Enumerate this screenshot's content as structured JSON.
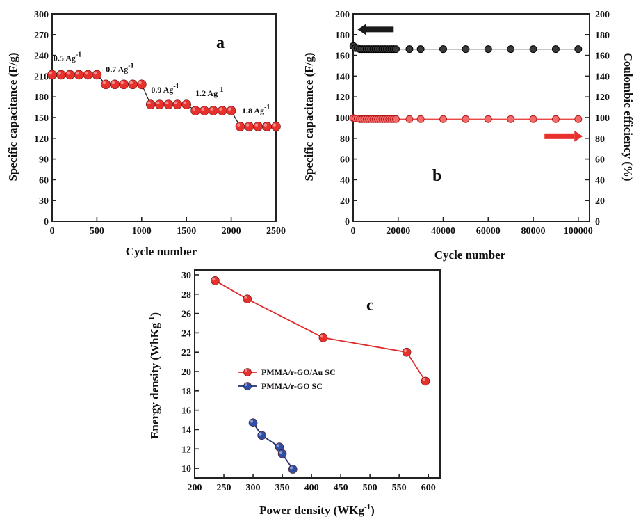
{
  "colors": {
    "red": "#e8302d",
    "red_line": "#e02b2b",
    "black": "#1a1a1a",
    "blue": "#2f4fa6",
    "blue_line": "#1d2f6f"
  },
  "chart_data": [
    {
      "panel": "a",
      "type": "scatter",
      "xlabel": "Cycle number",
      "ylabel": "Specific capacitance (F/g)",
      "xlim": [
        0,
        2500
      ],
      "ylim": [
        0,
        300
      ],
      "xticks": [
        0,
        500,
        1000,
        1500,
        2000,
        2500
      ],
      "yticks": [
        0,
        30,
        60,
        90,
        120,
        150,
        180,
        210,
        240,
        270,
        300
      ],
      "series": [
        {
          "x": [
            0,
            100,
            200,
            300,
            400,
            500,
            600,
            700,
            800,
            900,
            1000,
            1100,
            1200,
            1300,
            1400,
            1500,
            1600,
            1700,
            1800,
            1900,
            2000,
            2100,
            2200,
            2300,
            2400,
            2500
          ],
          "y": [
            212,
            212,
            212,
            212,
            212,
            212,
            198,
            198,
            198,
            198,
            198,
            169,
            169,
            169,
            169,
            169,
            160,
            160,
            160,
            160,
            160,
            137,
            137,
            137,
            137,
            137
          ]
        }
      ],
      "annotations": [
        {
          "text": "0.5 Ag",
          "sup": "-1",
          "x": 15,
          "y": 232
        },
        {
          "text": "0.7 Ag",
          "sup": "-1",
          "x": 600,
          "y": 216
        },
        {
          "text": "0.9 Ag",
          "sup": "-1",
          "x": 1105,
          "y": 186
        },
        {
          "text": "1.2 Ag",
          "sup": "-1",
          "x": 1600,
          "y": 181
        },
        {
          "text": "1.8 Ag",
          "sup": "-1",
          "x": 2120,
          "y": 156
        }
      ],
      "connectors": [
        [
          500,
          212,
          600,
          198
        ],
        [
          1000,
          198,
          1100,
          169
        ],
        [
          1500,
          169,
          1600,
          160
        ],
        [
          2000,
          160,
          2100,
          137
        ]
      ]
    },
    {
      "panel": "b",
      "type": "scatter",
      "xlabel": "Cycle number",
      "ylabel": "Specific capacitance (F/g)",
      "y2label": "Coulombic efficiency (%)",
      "xlim": [
        0,
        105000
      ],
      "ylim": [
        0,
        200
      ],
      "y2lim": [
        0,
        200
      ],
      "xticks": [
        0,
        20000,
        40000,
        60000,
        80000,
        100000
      ],
      "yticks": [
        0,
        20,
        40,
        60,
        80,
        100,
        120,
        140,
        160,
        180,
        200
      ],
      "series": [
        {
          "axis": "left",
          "color": "black",
          "x": [
            100,
            1000,
            2000,
            3000,
            4000,
            5000,
            6000,
            7000,
            8000,
            9000,
            10000,
            11000,
            12000,
            13000,
            14000,
            15000,
            16000,
            17000,
            18000,
            19000,
            25000,
            30000,
            40000,
            50000,
            60000,
            70000,
            80000,
            90000,
            100000
          ],
          "y": [
            169,
            167,
            167,
            166,
            166,
            166,
            166,
            166,
            166,
            166,
            166,
            166,
            166,
            166,
            166,
            166,
            166,
            166,
            166,
            166,
            166,
            166,
            166,
            166,
            166,
            166,
            166,
            166,
            166
          ]
        },
        {
          "axis": "right",
          "color": "red",
          "x": [
            100,
            1000,
            2000,
            3000,
            4000,
            5000,
            6000,
            7000,
            8000,
            9000,
            10000,
            11000,
            12000,
            13000,
            14000,
            15000,
            16000,
            17000,
            18000,
            19000,
            25000,
            30000,
            40000,
            50000,
            60000,
            70000,
            80000,
            90000,
            100000
          ],
          "y": [
            99.5,
            99,
            99,
            98.5,
            98.5,
            98.5,
            98.5,
            98.5,
            98.5,
            98.5,
            98.5,
            98.5,
            98.5,
            98.5,
            98.5,
            98.5,
            98.5,
            98.5,
            98.5,
            98.5,
            98.5,
            98.5,
            98.5,
            98.5,
            98.5,
            98.5,
            98.5,
            98.5,
            98.5
          ]
        }
      ],
      "arrows": [
        {
          "color": "black",
          "direction": "left",
          "x_from": 18000,
          "x_to": 2000,
          "y": 185
        },
        {
          "color": "red",
          "direction": "right",
          "x_from": 85000,
          "x_to": 102000,
          "y": 82
        }
      ]
    },
    {
      "panel": "c",
      "type": "line",
      "xlabel": "Power density (WKg",
      "xlabel_sup": "-1",
      "xlabel_tail": ")",
      "ylabel": "Energy density (WhKg",
      "ylabel_sup": "-1",
      "ylabel_tail": ")",
      "xlim": [
        200,
        620
      ],
      "ylim": [
        9,
        30.5
      ],
      "xticks": [
        200,
        250,
        300,
        350,
        400,
        450,
        500,
        550,
        600
      ],
      "yticks": [
        10,
        12,
        14,
        16,
        18,
        20,
        22,
        24,
        26,
        28,
        30
      ],
      "legend_position": "middle-left",
      "series": [
        {
          "name": "PMMA/r-GO/Au SC",
          "color": "red",
          "x": [
            235,
            290,
            420,
            563,
            595
          ],
          "y": [
            29.4,
            27.5,
            23.5,
            22.0,
            19.0
          ]
        },
        {
          "name": "PMMA/r-GO SC",
          "color": "blue",
          "x": [
            300,
            315,
            345,
            350,
            368
          ],
          "y": [
            14.7,
            13.4,
            12.2,
            11.5,
            9.9
          ]
        }
      ]
    }
  ],
  "panel_labels": {
    "a": "a",
    "b": "b",
    "c": "c"
  }
}
